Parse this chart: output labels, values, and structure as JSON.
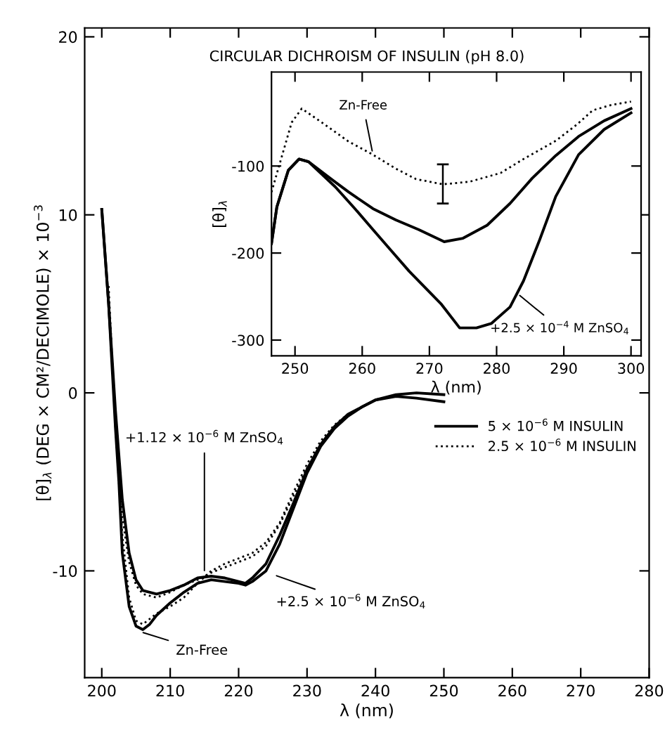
{
  "chart_data": [
    {
      "type": "line",
      "title": "CIRCULAR DICHROISM OF INSULIN (pH 8.0)",
      "xlabel": "λ (nm)",
      "ylabel": "[θ]$_{λ}$ (DEG × CM²/DECIMOLE) × 10$^{−3}$",
      "xlim": [
        197.5,
        280
      ],
      "ylim": [
        -16,
        20.5
      ],
      "xticks": [
        200,
        210,
        220,
        230,
        240,
        250,
        260,
        270,
        280
      ],
      "yticks": [
        -10,
        0,
        10,
        20
      ],
      "grid": false,
      "legend": "right",
      "series": [
        {
          "name": "5 × 10$^{−6}$ M INSULIN",
          "color": "#000000",
          "line_style": "solid",
          "x": [
            200,
            201,
            202,
            202.5,
            203,
            204,
            205,
            206,
            207,
            208,
            210,
            212,
            214,
            216,
            218,
            220,
            221,
            222,
            224,
            226,
            228,
            230,
            232,
            234,
            236,
            238,
            240,
            243,
            246,
            250
          ],
          "values": [
            10.3,
            5,
            -2,
            -5,
            -9,
            -12,
            -13.1,
            -13.3,
            -13.0,
            -12.5,
            -11.8,
            -11.2,
            -10.7,
            -10.5,
            -10.6,
            -10.7,
            -10.8,
            -10.6,
            -10.0,
            -8.5,
            -6.5,
            -4.5,
            -3.0,
            -2.0,
            -1.3,
            -0.8,
            -0.4,
            -0.1,
            0.0,
            -0.1
          ]
        },
        {
          "color": "#000000",
          "line_style": "solid",
          "x": [
            200,
            201,
            202,
            203,
            204,
            205,
            206,
            208,
            210,
            212,
            214,
            216,
            218,
            220,
            221,
            222,
            224,
            226,
            228,
            230,
            232,
            234,
            236,
            238,
            240,
            243,
            246,
            250
          ],
          "values": [
            10.3,
            5,
            -1,
            -6,
            -9,
            -10.5,
            -11.1,
            -11.3,
            -11.1,
            -10.8,
            -10.4,
            -10.3,
            -10.4,
            -10.6,
            -10.7,
            -10.4,
            -9.6,
            -8.0,
            -6.2,
            -4.3,
            -2.9,
            -1.9,
            -1.2,
            -0.8,
            -0.4,
            -0.2,
            -0.3,
            -0.5
          ]
        },
        {
          "name": "2.5 × 10$^{−6}$ M INSULIN",
          "color": "#000000",
          "line_style": "dotted",
          "x": [
            201,
            202,
            203,
            204,
            205,
            206,
            208,
            210,
            212,
            214,
            216,
            218,
            220,
            222,
            224,
            226,
            228,
            230,
            232,
            234,
            236,
            238,
            240
          ],
          "values": [
            6,
            -2,
            -8,
            -11.5,
            -12.8,
            -13.0,
            -12.4,
            -12.0,
            -11.5,
            -10.7,
            -10.0,
            -9.6,
            -9.3,
            -9.0,
            -8.4,
            -7.3,
            -5.6,
            -4.0,
            -2.7,
            -1.8,
            -1.2,
            -0.8,
            -0.4
          ]
        },
        {
          "color": "#000000",
          "line_style": "dotted",
          "x": [
            202,
            203,
            204,
            205,
            206,
            208,
            210,
            212,
            214,
            216,
            218,
            220,
            222,
            224,
            226,
            228,
            230
          ],
          "values": [
            -2,
            -7,
            -9.5,
            -10.8,
            -11.3,
            -11.5,
            -11.2,
            -10.8,
            -10.5,
            -10.1,
            -9.8,
            -9.5,
            -9.2,
            -8.6,
            -7.4,
            -5.8,
            -4.2
          ]
        }
      ],
      "annotations": [
        {
          "text": "+1.12 × 10$^{−6}$ M ZnSO$_{4}$",
          "x": 215,
          "y": -10.2
        },
        {
          "text": "+2.5 × 10$^{−6}$ M ZnSO$_{4}$",
          "x": 225,
          "y": -10.2
        },
        {
          "text": "Zn-Free",
          "x": 205.5,
          "y": -13.4
        }
      ]
    },
    {
      "type": "line",
      "xlabel": "λ (nm)",
      "ylabel": "[θ]$_{λ}$",
      "xlim": [
        246.5,
        301.5
      ],
      "ylim": [
        -318,
        8
      ],
      "xticks": [
        250,
        260,
        270,
        280,
        290,
        300
      ],
      "yticks": [
        -100,
        -200,
        -300
      ],
      "grid": false,
      "series": [
        {
          "color": "#000000",
          "line_style": "dotted",
          "x": [
            246.5,
            248,
            249.5,
            251,
            254,
            258,
            261.6,
            265,
            268,
            272,
            276,
            280.6,
            284,
            288.8,
            292,
            294.3,
            297,
            300
          ],
          "values": [
            -130,
            -90,
            -50,
            -34,
            -50,
            -72,
            -87,
            -103,
            -115,
            -121,
            -118,
            -108,
            -92,
            -71,
            -52,
            -36,
            -30,
            -26
          ],
          "errors": [
            null,
            null,
            null,
            null,
            null,
            null,
            null,
            null,
            null,
            [
              -143,
              -98
            ],
            null,
            null,
            null,
            null,
            null,
            null,
            null,
            null
          ]
        },
        {
          "color": "#000000",
          "line_style": "solid",
          "x": [
            246.5,
            247.3,
            249,
            250.6,
            252,
            254.7,
            258,
            261.6,
            265,
            268.4,
            272.2,
            275,
            278.6,
            282,
            285.3,
            288.8,
            292.2,
            296,
            300
          ],
          "values": [
            -189,
            -147,
            -105,
            -92,
            -95,
            -111,
            -130,
            -149,
            -162,
            -173,
            -187,
            -183,
            -168,
            -143,
            -114,
            -88,
            -66,
            -48,
            -34
          ]
        },
        {
          "color": "#000000",
          "line_style": "solid",
          "x": [
            246.5,
            247.3,
            249,
            250.6,
            252,
            256,
            258.8,
            261.6,
            264.3,
            267,
            269.4,
            271.8,
            274.5,
            277,
            279.2,
            282,
            284,
            286.4,
            288.8,
            292.2,
            296,
            300
          ],
          "values": [
            -189,
            -147,
            -105,
            -92,
            -95,
            -124,
            -148,
            -173,
            -197,
            -221,
            -240,
            -259,
            -286,
            -286,
            -281,
            -262,
            -232,
            -185,
            -135,
            -87,
            -58,
            -39
          ]
        }
      ],
      "annotations": [
        {
          "text": "Zn-Free",
          "x": 261.6,
          "y": -87
        },
        {
          "text": "+2.5 × 10$^{−4}$ M ZnSO$_{4}$",
          "x": 283,
          "y": -246
        }
      ]
    }
  ]
}
